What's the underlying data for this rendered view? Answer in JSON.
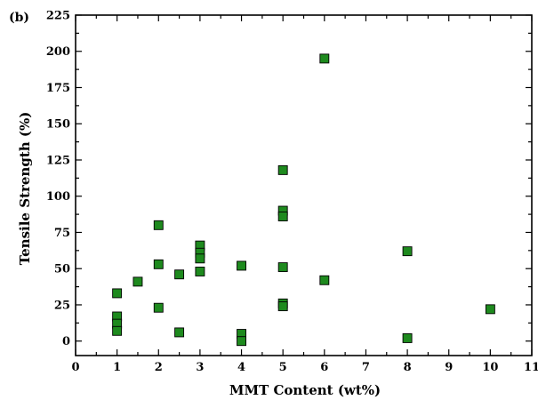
{
  "panel_label": "(b)",
  "chart_data": {
    "type": "scatter",
    "xlabel": "MMT Content (wt%)",
    "ylabel": "Tensile Strength (%)",
    "xlim": [
      0,
      11
    ],
    "ylim": [
      -10,
      225
    ],
    "x_ticks": [
      0,
      1,
      2,
      3,
      4,
      5,
      6,
      7,
      8,
      9,
      10,
      11
    ],
    "y_ticks": [
      0,
      25,
      50,
      75,
      100,
      125,
      150,
      175,
      200,
      225
    ],
    "marker_color": "#1e8a1e",
    "marker_edge_color": "#000000",
    "marker": "square",
    "points": [
      {
        "x": 1,
        "y": 33
      },
      {
        "x": 1,
        "y": 17
      },
      {
        "x": 1,
        "y": 12
      },
      {
        "x": 1,
        "y": 7
      },
      {
        "x": 1.5,
        "y": 41
      },
      {
        "x": 2,
        "y": 80
      },
      {
        "x": 2,
        "y": 53
      },
      {
        "x": 2,
        "y": 23
      },
      {
        "x": 2.5,
        "y": 46
      },
      {
        "x": 2.5,
        "y": 6
      },
      {
        "x": 3,
        "y": 66
      },
      {
        "x": 3,
        "y": 61
      },
      {
        "x": 3,
        "y": 57
      },
      {
        "x": 3,
        "y": 48
      },
      {
        "x": 4,
        "y": 52
      },
      {
        "x": 4,
        "y": 5
      },
      {
        "x": 4,
        "y": 0
      },
      {
        "x": 5,
        "y": 118
      },
      {
        "x": 5,
        "y": 90
      },
      {
        "x": 5,
        "y": 86
      },
      {
        "x": 5,
        "y": 51
      },
      {
        "x": 5,
        "y": 26
      },
      {
        "x": 5,
        "y": 24
      },
      {
        "x": 6,
        "y": 195
      },
      {
        "x": 6,
        "y": 42
      },
      {
        "x": 8,
        "y": 62
      },
      {
        "x": 8,
        "y": 2
      },
      {
        "x": 10,
        "y": 22
      }
    ]
  }
}
